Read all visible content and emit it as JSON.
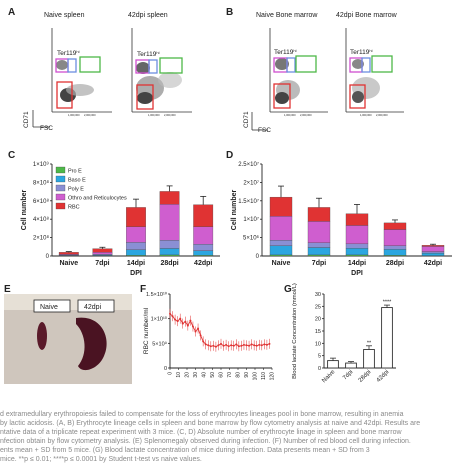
{
  "panels": {
    "A": {
      "letter": "A",
      "titles": [
        "Naive spleen",
        "42dpi spleen"
      ],
      "gate_label": "Ter119",
      "gate_sup": "hi",
      "xlabel": "FSC",
      "ylabel": "CD71",
      "xticks": [
        "1,000,000",
        "2,000,000",
        "3,000,000",
        "4,000,000"
      ]
    },
    "B": {
      "letter": "B",
      "titles": [
        "Naive Bone marrow",
        "42dpi Bone marrow"
      ],
      "gate_label": "Ter119",
      "gate_sup": "hi",
      "xlabel": "FSC",
      "ylabel": "CD71",
      "xticks": [
        "1,000,000",
        "2,000,000",
        "3,000,000",
        "4,000,000"
      ]
    },
    "C": {
      "letter": "C"
    },
    "D": {
      "letter": "D"
    },
    "E": {
      "letter": "E",
      "labels": [
        "Naive",
        "42dpi"
      ]
    },
    "F": {
      "letter": "F"
    },
    "G": {
      "letter": "G"
    }
  },
  "colors": {
    "pro_e": "#4db848",
    "baso_e": "#2ba6e0",
    "poly_e": "#8a8fd4",
    "ortho": "#cf5ecf",
    "rbc": "#e03333"
  },
  "chart_data": [
    {
      "type": "bar",
      "panel": "C",
      "stacked": true,
      "categories": [
        "Naive",
        "7dpi",
        "14dpi",
        "28dpi",
        "42dpi"
      ],
      "xlabel": "DPI",
      "ylabel": "Cell number",
      "yticks": [
        "0",
        "2×10⁸",
        "4×10⁸",
        "6×10⁸",
        "8×10⁸",
        "1×10⁹"
      ],
      "ylim": [
        0,
        1000000000
      ],
      "legend": [
        "Pro E",
        "Baso E",
        "Poly E",
        "Othro and Reticulocytes",
        "RBC"
      ],
      "series": [
        {
          "name": "Pro E",
          "values": [
            1000000,
            2000000,
            8000000,
            12000000,
            8000000
          ]
        },
        {
          "name": "Baso E",
          "values": [
            4000000,
            8000000,
            60000000,
            70000000,
            50000000
          ]
        },
        {
          "name": "Poly E",
          "values": [
            6000000,
            10000000,
            80000000,
            90000000,
            70000000
          ]
        },
        {
          "name": "Othro and Reticulocytes",
          "values": [
            9000000,
            20000000,
            170000000,
            390000000,
            190000000
          ]
        },
        {
          "name": "RBC",
          "values": [
            20000000,
            40000000,
            210000000,
            140000000,
            240000000
          ]
        }
      ],
      "errors": [
        8000000,
        15000000,
        90000000,
        60000000,
        90000000
      ]
    },
    {
      "type": "bar",
      "panel": "D",
      "stacked": true,
      "categories": [
        "Naive",
        "7dpi",
        "14dpi",
        "28dpi",
        "42dpi"
      ],
      "xlabel": "DPI",
      "ylabel": "Cell number",
      "yticks": [
        "0",
        "5×10⁶",
        "1×10⁷",
        "1.5×10⁷",
        "2×10⁷",
        "2.5×10⁷"
      ],
      "ylim": [
        0,
        25000000
      ],
      "series": [
        {
          "name": "Pro E",
          "values": [
            300000,
            300000,
            300000,
            200000,
            100000
          ]
        },
        {
          "name": "Baso E",
          "values": [
            2500000,
            2000000,
            1800000,
            1600000,
            700000
          ]
        },
        {
          "name": "Poly E",
          "values": [
            1500000,
            1300000,
            1200000,
            1000000,
            400000
          ]
        },
        {
          "name": "Othro and Reticulocytes",
          "values": [
            6500000,
            5800000,
            5000000,
            4400000,
            1400000
          ]
        },
        {
          "name": "RBC",
          "values": [
            5200000,
            3800000,
            3200000,
            1800000,
            300000
          ]
        }
      ],
      "errors": [
        3000000,
        2500000,
        2500000,
        800000,
        300000
      ]
    },
    {
      "type": "line",
      "panel": "F",
      "ylabel": "RBC number/ml",
      "yticks": [
        "0",
        "5×10⁹",
        "1×10¹⁰",
        "1.5×10¹⁰"
      ],
      "ylim": [
        0,
        15000000000
      ],
      "xticks": [
        "0",
        "10",
        "20",
        "30",
        "40",
        "50",
        "60",
        "70",
        "80",
        "90",
        "100",
        "110",
        "120"
      ],
      "xlim": [
        0,
        120
      ],
      "x": [
        0,
        3,
        6,
        9,
        12,
        15,
        18,
        21,
        24,
        27,
        30,
        33,
        36,
        39,
        42,
        45,
        48,
        51,
        54,
        57,
        60,
        63,
        66,
        69,
        72,
        75,
        78,
        81,
        84,
        87,
        90,
        93,
        96,
        99,
        102,
        105,
        108,
        111,
        114,
        117
      ],
      "y": [
        11000000000,
        10500000000,
        9800000000,
        9500000000,
        10000000000,
        9000000000,
        9400000000,
        8600000000,
        9600000000,
        8400000000,
        7400000000,
        8000000000,
        6600000000,
        5400000000,
        4800000000,
        4600000000,
        4400000000,
        4500000000,
        4300000000,
        4600000000,
        4900000000,
        4500000000,
        4700000000,
        4400000000,
        4600000000,
        4500000000,
        4800000000,
        4400000000,
        4500000000,
        4700000000,
        4600000000,
        4500000000,
        4800000000,
        4600000000,
        4500000000,
        4700000000,
        4600000000,
        4800000000,
        4700000000,
        4900000000
      ]
    },
    {
      "type": "bar",
      "panel": "G",
      "categories": [
        "Naive",
        "7dpi",
        "28dpi",
        "42dpi"
      ],
      "ylabel": "Blood lactate Concentration (mmol/L)",
      "yticks": [
        "0",
        "5",
        "10",
        "15",
        "20",
        "25",
        "30"
      ],
      "ylim": [
        0,
        30
      ],
      "values": [
        3,
        2,
        7.5,
        24.5
      ],
      "errors": [
        1,
        0.6,
        1.5,
        1
      ],
      "significance": [
        "",
        "",
        "**",
        "****"
      ]
    }
  ],
  "caption": {
    "lines": [
      "d extramedullary erythropoiesis failed to compensate for the loss of erythrocytes lineages pool in bone marrow, resulting in anemia",
      "by lactic acidosis. (A, B) Erythrocyte lineage cells in spleen and bone marrow by flow cytometry analysis at naive and 42dpi. Results are",
      "ntative data of a triplicate repeat experiment with 3 mice. (C, D) Absolute number of erythrocyte linage in spleen and bone marrow",
      "nfection obtain by flow cytometry analysis. (E) Splenomegaly observed during infection. (F) Number of red blood cell during infection.",
      "ents mean + SD from 5 mice. (G) Blood lactate concentration of mice during infection. Data presents mean + SD from 3",
      " mice. **p ≤ 0.01; ****p ≤ 0.0001 by Student t-test vs naive values."
    ]
  }
}
